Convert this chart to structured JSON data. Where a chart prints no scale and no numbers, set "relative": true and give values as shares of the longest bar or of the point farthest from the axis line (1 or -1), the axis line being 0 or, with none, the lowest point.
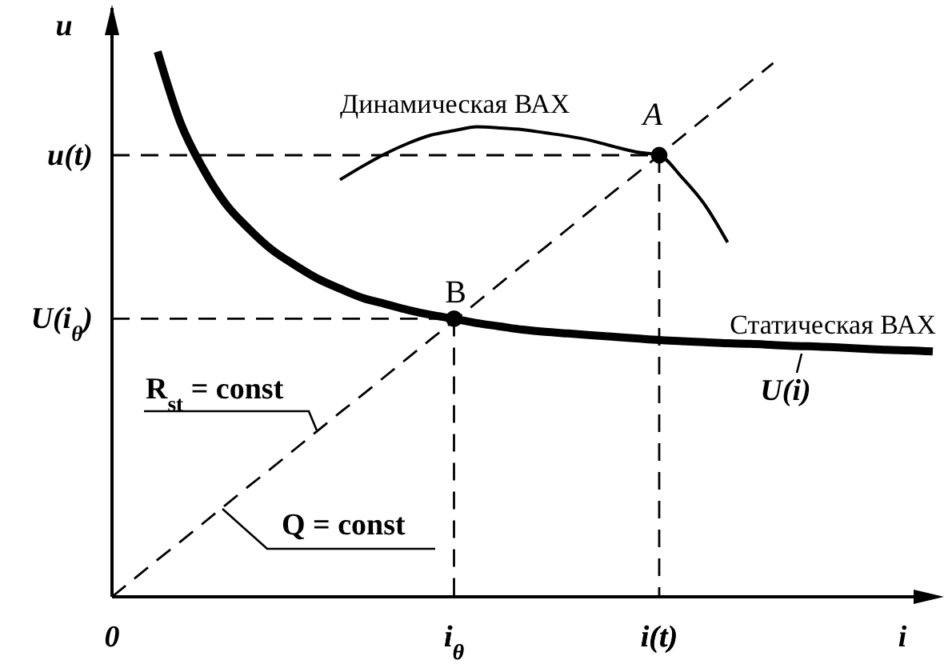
{
  "chart_data": {
    "type": "line",
    "relative": true,
    "xlabel": "i",
    "ylabel": "u",
    "marker": "none",
    "line_style": "solid",
    "categories": [
      "0",
      null,
      null,
      null,
      null,
      null,
      null,
      null,
      null,
      null,
      null,
      null,
      null,
      null,
      null,
      "i$_{θ}$",
      null,
      null,
      null,
      null,
      null,
      null,
      null,
      null,
      "i(t)",
      null,
      null,
      null,
      null,
      null,
      null,
      null,
      null,
      null,
      null,
      null,
      null
    ],
    "series": [
      {
        "name": "Статическая ВАХ",
        "color": "#000000",
        "values": [
          null,
          null,
          1.0,
          0.87,
          0.785,
          0.72,
          0.675,
          0.637,
          0.609,
          0.584,
          0.565,
          0.548,
          0.537,
          0.526,
          0.517,
          0.51,
          0.502,
          0.496,
          0.49,
          0.486,
          0.483,
          0.48,
          0.477,
          0.474,
          0.471,
          0.469,
          0.467,
          0.465,
          0.464,
          0.462,
          0.46,
          0.459,
          0.457,
          0.455,
          0.453,
          0.452,
          0.45
        ]
      },
      {
        "name": "Динамическая ВАХ",
        "color": "#000000",
        "values": [
          null,
          null,
          null,
          null,
          null,
          null,
          null,
          null,
          null,
          null,
          0.765,
          0.79,
          0.813,
          0.832,
          0.847,
          0.855,
          0.862,
          0.86,
          0.857,
          0.851,
          0.845,
          0.837,
          0.826,
          0.816,
          0.81,
          0.769,
          0.719,
          0.65,
          null,
          null,
          null,
          null,
          null,
          null,
          null,
          null,
          null
        ]
      },
      {
        "color": "#000000",
        "line_style": "dashed",
        "values": [
          0,
          0.034,
          0.068,
          0.101,
          0.135,
          0.169,
          0.203,
          0.236,
          0.27,
          0.304,
          0.338,
          0.371,
          0.405,
          0.439,
          0.473,
          0.506,
          0.54,
          0.574,
          0.608,
          0.641,
          0.675,
          0.709,
          0.743,
          0.776,
          0.81,
          0.844,
          0.878,
          0.911,
          0.945,
          0.979,
          null,
          null,
          null,
          null,
          null,
          null,
          null
        ]
      },
      {
        "type": "lollipop",
        "color": "#000000",
        "marker": "circle",
        "line_style": "dashed",
        "values": [
          null,
          null,
          null,
          null,
          null,
          null,
          null,
          null,
          null,
          null,
          null,
          null,
          null,
          null,
          null,
          0.51,
          null,
          null,
          null,
          null,
          null,
          null,
          null,
          null,
          0.81,
          null,
          null,
          null,
          null,
          null,
          null,
          null,
          null,
          null,
          null,
          null,
          null
        ]
      }
    ],
    "ref_lines": [
      {
        "axis": "y",
        "value": 0.81,
        "label": "u(t)",
        "line_style": "dashed"
      },
      {
        "axis": "y",
        "value": 0.51,
        "label": "U(i$_{θ}$)",
        "line_style": "dashed"
      }
    ],
    "annotations": [
      {
        "text": "A",
        "x": "i(t)",
        "y": 0.81
      },
      {
        "text": "B",
        "x": "i$_{θ}$",
        "y": 0.51
      },
      "U(i)",
      "R$_{st}$ = const",
      "Q = const"
    ]
  }
}
